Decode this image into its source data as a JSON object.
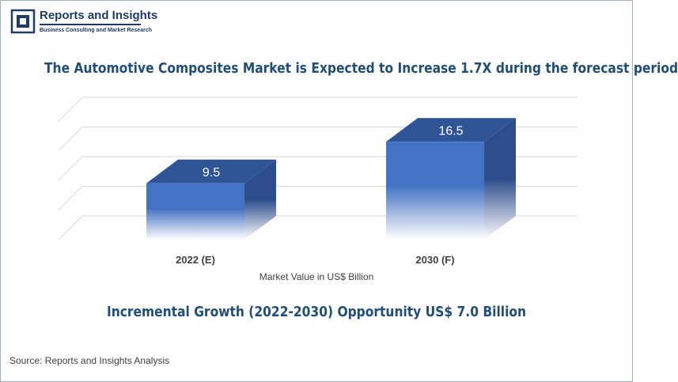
{
  "brand": {
    "name": "Reports and Insights",
    "tagline": "Business Consulting and Market Research"
  },
  "headline": "The Automotive Composites Market is Expected to Increase 1.7X during the forecast period",
  "chart_data": {
    "type": "bar",
    "categories": [
      "2022 (E)",
      "2030 (F)"
    ],
    "values": [
      9.5,
      16.5
    ],
    "data_labels": [
      "9.5",
      "16.5"
    ],
    "xlabel": "Market Value in US$ Billion",
    "ylabel": "",
    "ylim": [
      0,
      20
    ],
    "grid": true,
    "style": "3d",
    "colors": {
      "front": "#4472c4",
      "side": "#2e4d8c",
      "top": "#2f5597",
      "grid": "#d9d9d9"
    }
  },
  "subline": "Incremental Growth (2022-2030) Opportunity US$ 7.0 Billion",
  "source": "Source: Reports and Insights Analysis"
}
